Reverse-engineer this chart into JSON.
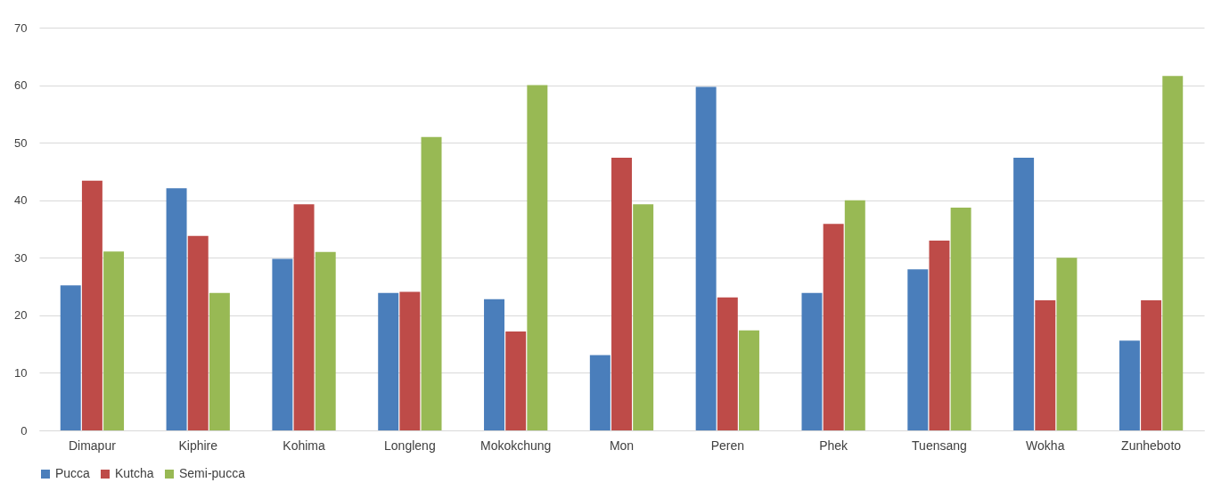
{
  "chart_data": {
    "type": "bar",
    "categories": [
      "Dimapur",
      "Kiphire",
      "Kohima",
      "Longleng",
      "Mokokchung",
      "Mon",
      "Peren",
      "Phek",
      "Tuensang",
      "Wokha",
      "Zunheboto"
    ],
    "series": [
      {
        "name": "Pucca",
        "color": "#4a7ebb",
        "values": [
          25.2,
          42.1,
          29.8,
          23.9,
          22.8,
          13.1,
          59.7,
          23.9,
          28.0,
          47.4,
          15.6
        ]
      },
      {
        "name": "Kutcha",
        "color": "#be4b48",
        "values": [
          43.4,
          33.8,
          39.3,
          24.1,
          17.2,
          47.4,
          23.1,
          35.9,
          33.0,
          22.6,
          22.6
        ]
      },
      {
        "name": "Semi-pucca",
        "color": "#98b954",
        "values": [
          31.1,
          23.9,
          31.0,
          51.0,
          60.0,
          39.3,
          17.4,
          40.0,
          38.7,
          30.0,
          61.6
        ]
      }
    ],
    "ylim": [
      0,
      70
    ],
    "yticks": [
      0,
      10,
      20,
      30,
      40,
      50,
      60,
      70
    ],
    "grid": "y",
    "legend": "bottom"
  }
}
